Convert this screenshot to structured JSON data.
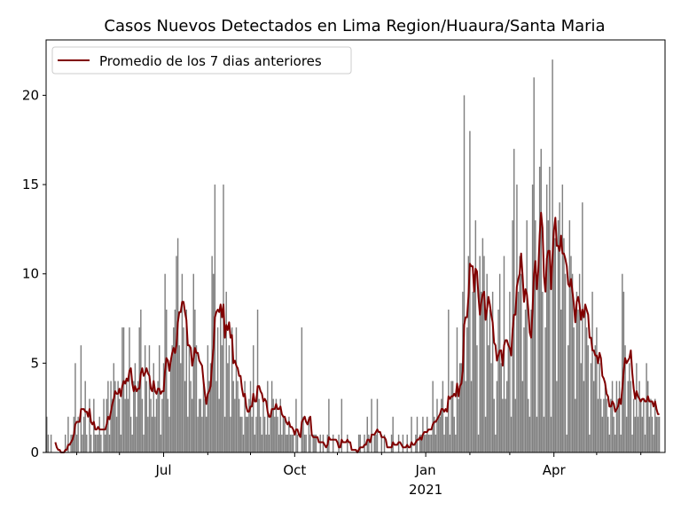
{
  "chart_data": {
    "type": "bar",
    "title": "Casos Nuevos Detectados en Lima Region/Huaura/Santa Maria",
    "xlabel": "",
    "ylabel": "",
    "start_date": "2020-04-10",
    "ylim": [
      0,
      23.1
    ],
    "xlim_days": [
      -0.5,
      434
    ],
    "yticks": [
      0,
      5,
      10,
      15,
      20
    ],
    "xticks": [
      {
        "day": 82,
        "label": "Jul",
        "sublabel": ""
      },
      {
        "day": 174,
        "label": "Oct",
        "sublabel": ""
      },
      {
        "day": 266,
        "label": "Jan",
        "sublabel": "2021"
      },
      {
        "day": 356,
        "label": "Apr",
        "sublabel": ""
      }
    ],
    "minor_tick_days": [
      21,
      51,
      113,
      143,
      204,
      235,
      297,
      325,
      386,
      417
    ],
    "legend": {
      "label": "Promedio de los 7 dias anteriores",
      "position": "top-left"
    },
    "bar_color": "#808080",
    "line_color": "#800000",
    "moving_average_window": 7,
    "values": [
      2,
      1,
      0,
      1,
      0,
      0,
      0,
      0,
      0,
      0,
      0,
      0,
      0,
      1,
      0,
      2,
      0,
      1,
      1,
      2,
      5,
      1,
      2,
      0,
      6,
      1,
      2,
      4,
      1,
      0,
      3,
      1,
      0,
      3,
      1,
      1,
      1,
      2,
      1,
      0,
      3,
      1,
      3,
      4,
      1,
      4,
      3,
      5,
      4,
      2,
      4,
      3,
      1,
      7,
      7,
      3,
      4,
      3,
      7,
      2,
      1,
      4,
      5,
      2,
      4,
      7,
      8,
      3,
      1,
      6,
      4,
      2,
      6,
      3,
      2,
      5,
      2,
      3,
      4,
      6,
      1,
      3,
      5,
      10,
      8,
      3,
      2,
      5,
      6,
      7,
      8,
      11,
      12,
      6,
      5,
      10,
      7,
      4,
      8,
      2,
      6,
      4,
      3,
      10,
      8,
      6,
      2,
      3,
      3,
      2,
      4,
      3,
      2,
      6,
      4,
      5,
      11,
      10,
      15,
      4,
      7,
      3,
      8,
      6,
      15,
      2,
      9,
      5,
      6,
      2,
      7,
      4,
      3,
      7,
      4,
      3,
      2,
      2,
      1,
      4,
      2,
      2,
      3,
      4,
      2,
      6,
      1,
      2,
      8,
      3,
      2,
      1,
      3,
      2,
      1,
      4,
      1,
      2,
      4,
      3,
      2,
      3,
      2,
      1,
      3,
      1,
      2,
      2,
      1,
      1,
      2,
      1,
      1,
      1,
      0,
      3,
      1,
      0,
      0,
      7,
      2,
      1,
      1,
      0,
      2,
      1,
      0,
      1,
      1,
      1,
      0,
      0,
      1,
      0,
      1,
      0,
      0,
      1,
      3,
      0,
      0,
      1,
      0,
      0,
      0,
      1,
      0,
      3,
      0,
      0,
      0,
      1,
      0,
      0,
      0,
      0,
      0,
      0,
      0,
      1,
      1,
      0,
      0,
      1,
      0,
      2,
      1,
      0,
      3,
      0,
      1,
      1,
      3,
      0,
      0,
      1,
      0,
      1,
      0,
      0,
      0,
      0,
      1,
      2,
      0,
      0,
      0,
      1,
      0,
      0,
      1,
      0,
      0,
      1,
      0,
      0,
      2,
      0,
      0,
      1,
      2,
      0,
      1,
      1,
      2,
      1,
      1,
      2,
      1,
      1,
      1,
      4,
      2,
      1,
      3,
      2,
      2,
      3,
      4,
      1,
      2,
      2,
      8,
      1,
      4,
      4,
      2,
      1,
      7,
      3,
      5,
      5,
      9,
      20,
      4,
      7,
      11,
      18,
      4,
      9,
      10,
      13,
      6,
      1,
      11,
      9,
      12,
      11,
      2,
      10,
      6,
      8,
      5,
      9,
      3,
      1,
      4,
      8,
      10,
      5,
      3,
      11,
      3,
      4,
      6,
      9,
      2,
      13,
      17,
      3,
      15,
      9,
      11,
      10,
      4,
      7,
      8,
      13,
      3,
      2,
      8,
      15,
      21,
      13,
      2,
      10,
      16,
      17,
      9,
      2,
      7,
      15,
      13,
      16,
      2,
      22,
      12,
      12,
      4,
      13,
      14,
      8,
      15,
      12,
      10,
      1,
      6,
      13,
      11,
      10,
      7,
      3,
      9,
      8,
      10,
      5,
      14,
      4,
      8,
      7,
      6,
      1,
      5,
      9,
      4,
      6,
      7,
      3,
      5,
      3,
      2,
      3,
      4,
      3,
      2,
      1,
      3,
      4,
      2,
      1,
      4,
      3,
      4,
      1,
      10,
      9,
      6,
      2,
      4,
      5,
      4,
      1,
      3,
      2,
      5,
      2,
      4,
      3,
      2,
      3,
      1,
      5,
      4,
      2,
      3,
      2,
      1,
      3,
      2,
      2,
      2
    ]
  }
}
